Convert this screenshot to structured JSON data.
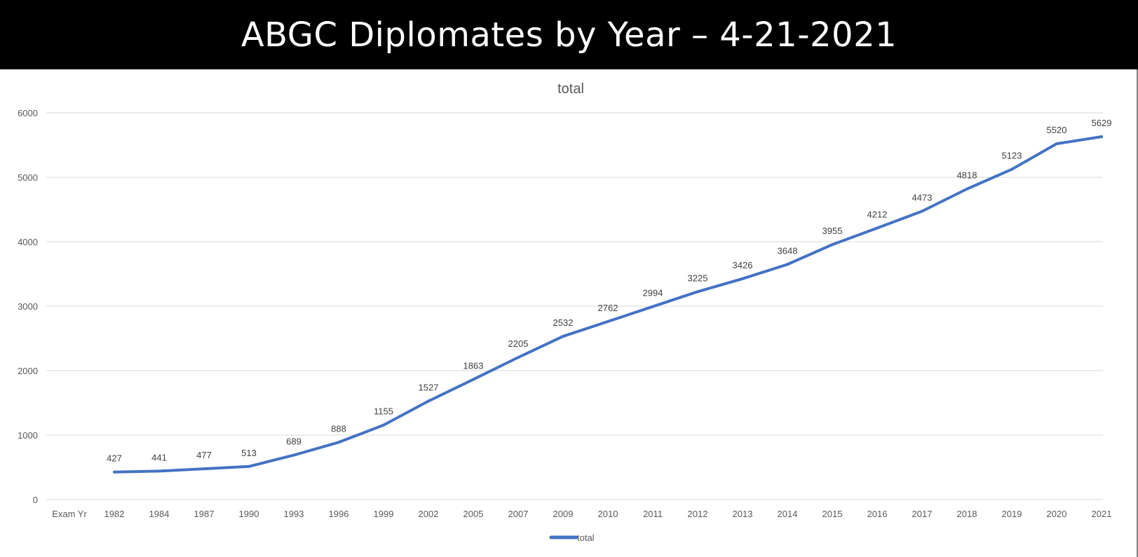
{
  "banner": {
    "title": "ABGC Diplomates by Year – 4-21-2021"
  },
  "colors": {
    "banner_background": "#000000",
    "banner_text": "#ffffff",
    "series_line": "#4472c4",
    "gridline": "#d9d9d9",
    "axis_text": "#595959",
    "data_label_text": "#404040"
  },
  "chart_data": {
    "type": "line",
    "title": "total",
    "xlabel": "",
    "ylabel": "",
    "categories": [
      "Exam Yr",
      "1982",
      "1984",
      "1987",
      "1990",
      "1993",
      "1996",
      "1999",
      "2002",
      "2005",
      "2007",
      "2009",
      "2010",
      "2011",
      "2012",
      "2013",
      "2014",
      "2015",
      "2016",
      "2017",
      "2018",
      "2019",
      "2020",
      "2021"
    ],
    "series": [
      {
        "name": "total",
        "values": [
          null,
          427,
          441,
          477,
          513,
          689,
          888,
          1155,
          1527,
          1863,
          2205,
          2532,
          2762,
          2994,
          3225,
          3426,
          3648,
          3955,
          4212,
          4473,
          4818,
          5123,
          5520,
          5629
        ]
      }
    ],
    "ylim": [
      0,
      6000
    ],
    "yticks": [
      0,
      1000,
      2000,
      3000,
      4000,
      5000,
      6000
    ],
    "grid": true,
    "data_labels": true,
    "legend_position": "bottom"
  }
}
